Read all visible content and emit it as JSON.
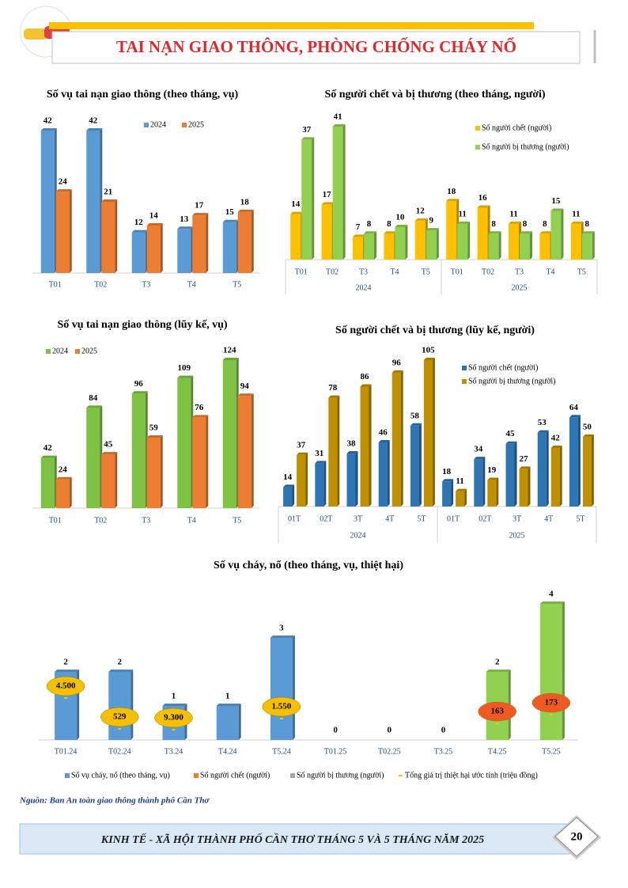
{
  "header": {
    "title": "TAI NẠN GIAO THÔNG, PHÒNG CHỐNG CHÁY NỔ"
  },
  "chart_data": [
    {
      "type": "bar",
      "title": "Số vụ tai nạn giao thông (theo tháng, vụ)",
      "categories": [
        "T01",
        "T02",
        "T3",
        "T4",
        "T5"
      ],
      "series": [
        {
          "name": "2024",
          "color": "#5b9bd5",
          "values": [
            42,
            42,
            12,
            13,
            15
          ]
        },
        {
          "name": "2025",
          "color": "#ed7d31",
          "values": [
            24,
            21,
            14,
            17,
            18
          ]
        }
      ]
    },
    {
      "type": "bar",
      "title": "Số người chết và bị thương (theo tháng, người)",
      "categories": [
        "T01",
        "T02",
        "T3",
        "T4",
        "T5",
        "T01",
        "T02",
        "T3",
        "T4",
        "T5"
      ],
      "groups": [
        "2024",
        "2025"
      ],
      "series": [
        {
          "name": "Số người chết (người)",
          "color": "#ffc000",
          "values": [
            14,
            17,
            7,
            8,
            12,
            18,
            16,
            11,
            8,
            11
          ]
        },
        {
          "name": "Số người bị thương (người)",
          "color": "#92d050",
          "values": [
            37,
            41,
            8,
            10,
            9,
            11,
            8,
            8,
            15,
            8
          ]
        }
      ]
    },
    {
      "type": "bar",
      "title": "Số vụ tai nạn giao thông (lũy kế, vụ)",
      "categories": [
        "T01",
        "T02",
        "T3",
        "T4",
        "T5"
      ],
      "series": [
        {
          "name": "2024",
          "color": "#7dc242",
          "values": [
            42,
            84,
            96,
            109,
            124
          ]
        },
        {
          "name": "2025",
          "color": "#ed7d31",
          "values": [
            24,
            45,
            59,
            76,
            94
          ]
        }
      ]
    },
    {
      "type": "bar",
      "title": "Số người chết và bị thương (lũy kế, người)",
      "categories": [
        "01T",
        "02T",
        "3T",
        "4T",
        "5T",
        "01T",
        "02T",
        "3T",
        "4T",
        "5T"
      ],
      "groups": [
        "2024",
        "2025"
      ],
      "series": [
        {
          "name": "Số người chết (người)",
          "color": "#2e75b6",
          "values": [
            14,
            31,
            38,
            46,
            58,
            18,
            34,
            45,
            53,
            64
          ]
        },
        {
          "name": "Số người bị thương (người)",
          "color": "#bf9000",
          "values": [
            37,
            78,
            86,
            96,
            105,
            11,
            19,
            27,
            42,
            50
          ]
        }
      ]
    },
    {
      "type": "bar",
      "title": "Số vụ cháy, nổ (theo tháng, vụ, thiệt hại)",
      "categories": [
        "T01.24",
        "T02.24",
        "T3.24",
        "T4.24",
        "T5.24",
        "T01.25",
        "T02.25",
        "T3.25",
        "T4.25",
        "T5.25"
      ],
      "series": [
        {
          "name": "Số vụ cháy, nổ (theo tháng, vụ)",
          "color": "#5b9bd5",
          "colors": [
            "#5b9bd5",
            "#5b9bd5",
            "#5b9bd5",
            "#5b9bd5",
            "#5b9bd5",
            "#5b9bd5",
            "#5b9bd5",
            "#5b9bd5",
            "#92d050",
            "#92d050"
          ],
          "values": [
            2,
            2,
            1,
            1,
            3,
            0,
            0,
            0,
            2,
            4
          ]
        },
        {
          "name": "Số người chết (người)",
          "color": "#ed7d31"
        },
        {
          "name": "Số người bị thương (người)",
          "color": "#a5a5a5"
        },
        {
          "name": "Tổng giá trị thiệt hại ước tính (triệu đồng)",
          "color": "#ffc000",
          "type": "label",
          "colors": [
            "#f5c000",
            "#f5c000",
            "#f5c000",
            null,
            "#f5c000",
            null,
            null,
            null,
            "#f05a22",
            "#f05a22"
          ],
          "values": [
            4500,
            529,
            9300,
            null,
            1550,
            null,
            null,
            null,
            163,
            173
          ],
          "value_labels": [
            "4.500",
            "529",
            "9.300",
            null,
            "1.550",
            null,
            null,
            null,
            "163",
            "173"
          ]
        }
      ]
    }
  ],
  "source": "Nguồn: Ban An toàn giao thông thành phố Cần Thơ",
  "footer": {
    "text": "KINH TẾ - XÃ HỘI THÀNH PHỐ CẦN THƠ THÁNG 5 VÀ 5 THÁNG NĂM 2025",
    "page": "20"
  }
}
